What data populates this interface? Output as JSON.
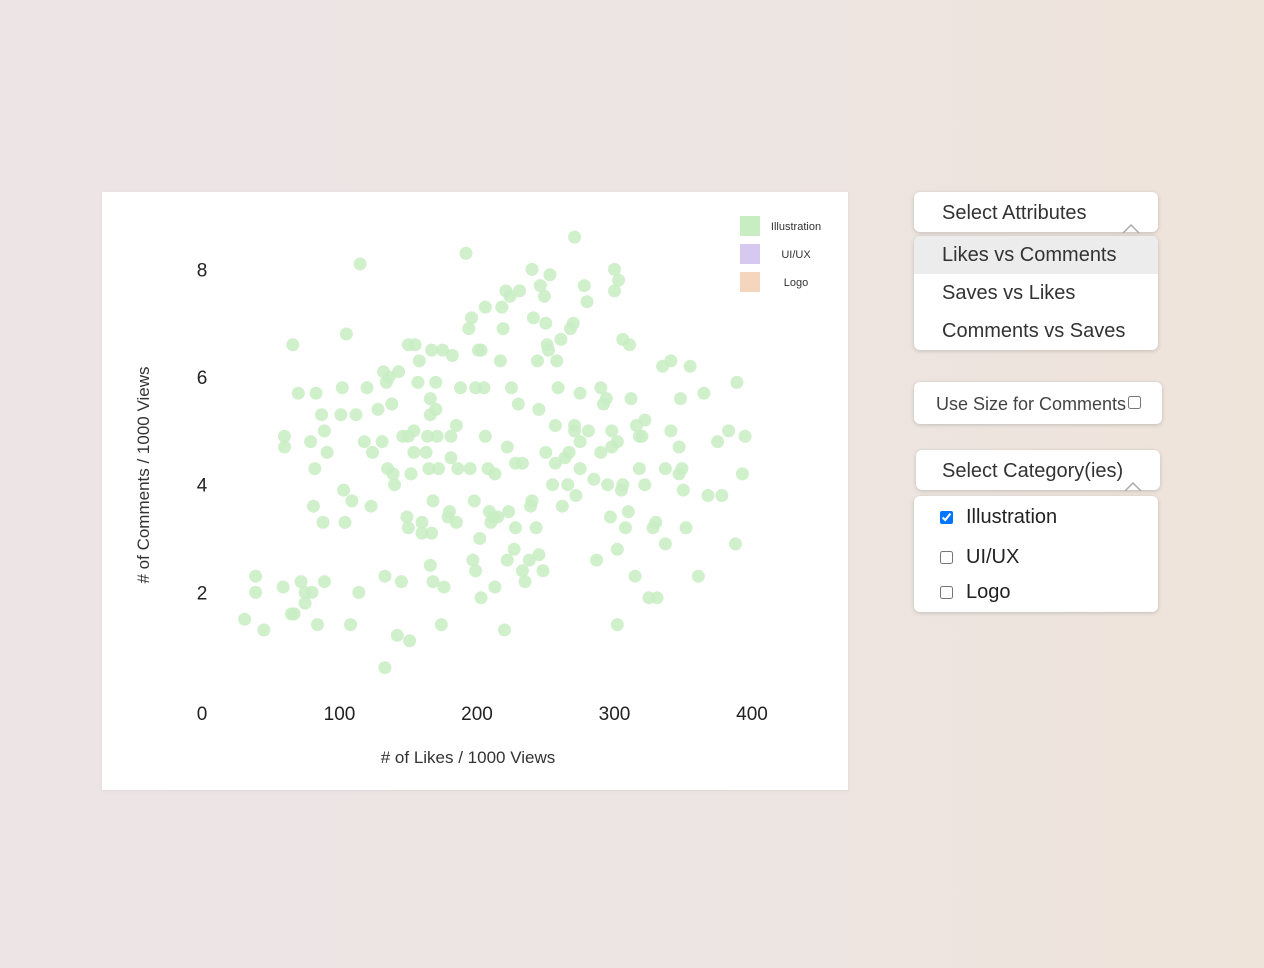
{
  "attributes_select": {
    "header": "Select Attributes",
    "options": [
      "Likes vs Comments",
      "Saves vs Likes",
      "Comments vs Saves"
    ],
    "selected": "Likes vs Comments"
  },
  "size_toggle": {
    "label": "Use Size for Comments",
    "checked": false
  },
  "category_select": {
    "header": "Select Category(ies)",
    "options": [
      {
        "label": "Illustration",
        "checked": true
      },
      {
        "label": "UI/UX",
        "checked": false
      },
      {
        "label": "Logo",
        "checked": false
      }
    ]
  },
  "chart_data": {
    "type": "scatter",
    "xlabel": "# of Likes / 1000 Views",
    "ylabel": "# of Comments / 1000 Views",
    "xlim": [
      0,
      400
    ],
    "ylim": [
      0,
      8.5
    ],
    "xticks": [
      0,
      100,
      200,
      300,
      400
    ],
    "yticks": [
      2,
      4,
      6,
      8
    ],
    "legend_position": "top-right",
    "legend": [
      {
        "label": "Illustration",
        "color": "#c8edc3"
      },
      {
        "label": "UI/UX",
        "color": "#d6c8ef"
      },
      {
        "label": "Logo",
        "color": "#f6d5bd"
      }
    ],
    "series": [
      {
        "name": "Illustration",
        "color": "#c8edc3",
        "points": [
          [
            31,
            1.5
          ],
          [
            39,
            2.0
          ],
          [
            39,
            2.3
          ],
          [
            45,
            1.3
          ],
          [
            59,
            2.1
          ],
          [
            60,
            4.7
          ],
          [
            60,
            4.9
          ],
          [
            65,
            1.6
          ],
          [
            67,
            1.6
          ],
          [
            66,
            6.6
          ],
          [
            70,
            5.7
          ],
          [
            72,
            2.2
          ],
          [
            75,
            2.0
          ],
          [
            75,
            1.8
          ],
          [
            79,
            4.8
          ],
          [
            80,
            2.0
          ],
          [
            81,
            3.6
          ],
          [
            82,
            4.3
          ],
          [
            83,
            5.7
          ],
          [
            84,
            1.4
          ],
          [
            87,
            5.3
          ],
          [
            88,
            3.3
          ],
          [
            89,
            2.2
          ],
          [
            89,
            5.0
          ],
          [
            91,
            4.6
          ],
          [
            101,
            5.3
          ],
          [
            102,
            5.8
          ],
          [
            103,
            3.9
          ],
          [
            104,
            3.3
          ],
          [
            105,
            6.8
          ],
          [
            108,
            1.4
          ],
          [
            109,
            3.7
          ],
          [
            112,
            5.3
          ],
          [
            114,
            2.0
          ],
          [
            115,
            8.1
          ],
          [
            118,
            4.8
          ],
          [
            120,
            5.8
          ],
          [
            123,
            3.6
          ],
          [
            124,
            4.6
          ],
          [
            128,
            5.4
          ],
          [
            131,
            4.8
          ],
          [
            132,
            6.1
          ],
          [
            133,
            0.6
          ],
          [
            133,
            2.3
          ],
          [
            134,
            5.9
          ],
          [
            135,
            4.3
          ],
          [
            136,
            6.0
          ],
          [
            138,
            5.5
          ],
          [
            139,
            4.2
          ],
          [
            140,
            4.0
          ],
          [
            142,
            1.2
          ],
          [
            143,
            6.1
          ],
          [
            145,
            2.2
          ],
          [
            146,
            4.9
          ],
          [
            149,
            3.4
          ],
          [
            150,
            6.6
          ],
          [
            150,
            4.9
          ],
          [
            150,
            3.2
          ],
          [
            151,
            1.1
          ],
          [
            152,
            4.2
          ],
          [
            154,
            4.6
          ],
          [
            154,
            5.0
          ],
          [
            155,
            6.6
          ],
          [
            157,
            5.9
          ],
          [
            158,
            6.3
          ],
          [
            160,
            3.3
          ],
          [
            160,
            3.1
          ],
          [
            163,
            4.6
          ],
          [
            164,
            4.9
          ],
          [
            165,
            4.3
          ],
          [
            166,
            2.5
          ],
          [
            166,
            5.6
          ],
          [
            166,
            5.3
          ],
          [
            167,
            6.5
          ],
          [
            167,
            3.1
          ],
          [
            168,
            3.7
          ],
          [
            168,
            2.2
          ],
          [
            170,
            5.9
          ],
          [
            170,
            5.4
          ],
          [
            171,
            4.9
          ],
          [
            172,
            4.3
          ],
          [
            174,
            1.4
          ],
          [
            175,
            6.5
          ],
          [
            176,
            2.1
          ],
          [
            179,
            3.4
          ],
          [
            180,
            3.5
          ],
          [
            181,
            4.9
          ],
          [
            181,
            4.5
          ],
          [
            182,
            6.4
          ],
          [
            185,
            5.1
          ],
          [
            185,
            3.3
          ],
          [
            186,
            4.3
          ],
          [
            188,
            5.8
          ],
          [
            192,
            8.3
          ],
          [
            194,
            6.9
          ],
          [
            195,
            4.3
          ],
          [
            196,
            7.1
          ],
          [
            197,
            2.6
          ],
          [
            198,
            3.7
          ],
          [
            199,
            2.4
          ],
          [
            199,
            5.8
          ],
          [
            201,
            6.5
          ],
          [
            202,
            3.0
          ],
          [
            203,
            1.9
          ],
          [
            203,
            6.5
          ],
          [
            205,
            5.8
          ],
          [
            206,
            4.9
          ],
          [
            206,
            7.3
          ],
          [
            208,
            4.3
          ],
          [
            209,
            3.5
          ],
          [
            210,
            3.3
          ],
          [
            212,
            3.4
          ],
          [
            213,
            2.1
          ],
          [
            213,
            4.2
          ],
          [
            215,
            3.4
          ],
          [
            217,
            6.3
          ],
          [
            218,
            7.3
          ],
          [
            219,
            6.9
          ],
          [
            220,
            1.3
          ],
          [
            221,
            7.6
          ],
          [
            222,
            4.7
          ],
          [
            222,
            2.6
          ],
          [
            223,
            3.5
          ],
          [
            224,
            7.5
          ],
          [
            225,
            5.8
          ],
          [
            227,
            2.8
          ],
          [
            228,
            4.4
          ],
          [
            228,
            3.2
          ],
          [
            230,
            5.5
          ],
          [
            231,
            7.6
          ],
          [
            233,
            4.4
          ],
          [
            233,
            2.4
          ],
          [
            235,
            2.2
          ],
          [
            238,
            2.6
          ],
          [
            239,
            3.6
          ],
          [
            240,
            8.0
          ],
          [
            240,
            3.7
          ],
          [
            241,
            7.1
          ],
          [
            243,
            3.2
          ],
          [
            244,
            6.3
          ],
          [
            245,
            5.4
          ],
          [
            245,
            2.7
          ],
          [
            246,
            7.7
          ],
          [
            248,
            2.4
          ],
          [
            249,
            7.5
          ],
          [
            250,
            4.6
          ],
          [
            250,
            7.0
          ],
          [
            251,
            6.6
          ],
          [
            252,
            6.5
          ],
          [
            253,
            7.9
          ],
          [
            255,
            4.0
          ],
          [
            257,
            4.4
          ],
          [
            257,
            5.1
          ],
          [
            258,
            6.3
          ],
          [
            259,
            5.8
          ],
          [
            261,
            6.7
          ],
          [
            262,
            3.6
          ],
          [
            264,
            4.5
          ],
          [
            266,
            4.0
          ],
          [
            267,
            4.6
          ],
          [
            268,
            6.9
          ],
          [
            270,
            7.0
          ],
          [
            271,
            5.0
          ],
          [
            271,
            8.6
          ],
          [
            271,
            5.1
          ],
          [
            272,
            3.8
          ],
          [
            275,
            5.7
          ],
          [
            275,
            4.8
          ],
          [
            275,
            4.3
          ],
          [
            278,
            7.7
          ],
          [
            280,
            7.4
          ],
          [
            281,
            5.0
          ],
          [
            285,
            4.1
          ],
          [
            287,
            2.6
          ],
          [
            290,
            5.8
          ],
          [
            290,
            4.6
          ],
          [
            292,
            5.5
          ],
          [
            294,
            5.6
          ],
          [
            295,
            4.0
          ],
          [
            297,
            3.4
          ],
          [
            298,
            5.0
          ],
          [
            298,
            4.7
          ],
          [
            300,
            7.6
          ],
          [
            300,
            8.0
          ],
          [
            302,
            1.4
          ],
          [
            302,
            2.8
          ],
          [
            302,
            4.8
          ],
          [
            303,
            7.8
          ],
          [
            305,
            3.9
          ],
          [
            306,
            4.0
          ],
          [
            306,
            6.7
          ],
          [
            308,
            3.2
          ],
          [
            310,
            3.5
          ],
          [
            311,
            6.6
          ],
          [
            312,
            5.6
          ],
          [
            315,
            2.3
          ],
          [
            316,
            5.1
          ],
          [
            318,
            4.9
          ],
          [
            318,
            4.3
          ],
          [
            320,
            4.9
          ],
          [
            322,
            4.0
          ],
          [
            322,
            5.2
          ],
          [
            325,
            1.9
          ],
          [
            328,
            3.2
          ],
          [
            330,
            3.3
          ],
          [
            331,
            1.9
          ],
          [
            335,
            6.2
          ],
          [
            337,
            2.9
          ],
          [
            337,
            4.3
          ],
          [
            341,
            5.0
          ],
          [
            341,
            6.3
          ],
          [
            347,
            4.7
          ],
          [
            347,
            4.2
          ],
          [
            348,
            5.6
          ],
          [
            349,
            4.3
          ],
          [
            350,
            3.9
          ],
          [
            352,
            3.2
          ],
          [
            355,
            6.2
          ],
          [
            361,
            2.3
          ],
          [
            365,
            5.7
          ],
          [
            368,
            3.8
          ],
          [
            375,
            4.8
          ],
          [
            378,
            3.8
          ],
          [
            383,
            5.0
          ],
          [
            388,
            2.9
          ],
          [
            389,
            5.9
          ],
          [
            393,
            4.2
          ],
          [
            395,
            4.9
          ]
        ]
      }
    ]
  }
}
